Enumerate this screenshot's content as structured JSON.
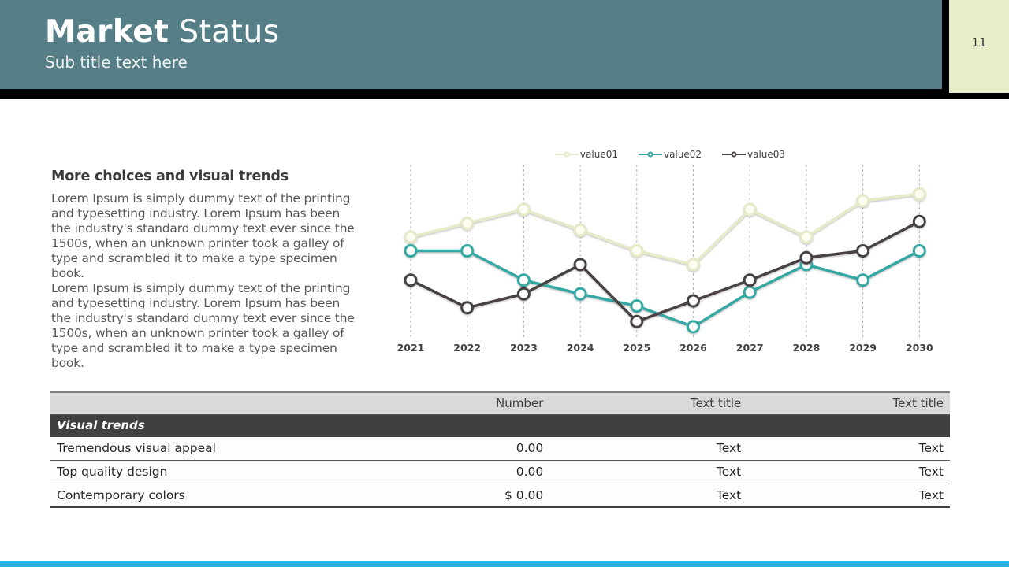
{
  "header": {
    "title_bold": "Market",
    "title_rest": " Status",
    "subtitle": "Sub title text here",
    "page_number": "11"
  },
  "content": {
    "heading": "More choices and visual trends",
    "paragraph1": "Lorem Ipsum is simply dummy text of the printing and typesetting industry. Lorem Ipsum has been the industry's standard dummy text ever since the 1500s, when an unknown printer took a galley of type and scrambled it to make a type specimen book.",
    "paragraph2": "Lorem Ipsum is simply dummy text of the printing and typesetting industry. Lorem Ipsum has been the industry's standard dummy text ever since the 1500s, when an unknown printer took a galley of type and scrambled it to make a type specimen book."
  },
  "chart_data": {
    "type": "line",
    "x": [
      "2021",
      "2022",
      "2023",
      "2024",
      "2025",
      "2026",
      "2027",
      "2028",
      "2029",
      "2030"
    ],
    "series": [
      {
        "name": "value01",
        "color": "#e7e9c8",
        "marker_fill": "#fdfdf2",
        "values": [
          5.8,
          6.6,
          7.4,
          6.2,
          5.0,
          4.2,
          7.4,
          5.8,
          7.9,
          8.3
        ]
      },
      {
        "name": "value02",
        "color": "#35a8a3",
        "marker_fill": "#ffffff",
        "values": [
          5.0,
          5.0,
          3.3,
          2.5,
          1.8,
          0.6,
          2.6,
          4.2,
          3.3,
          5.0
        ]
      },
      {
        "name": "value03",
        "color": "#4a4245",
        "marker_fill": "#ffffff",
        "values": [
          3.3,
          1.7,
          2.5,
          4.2,
          0.9,
          2.1,
          3.3,
          4.6,
          5.0,
          6.7
        ]
      }
    ],
    "title": "",
    "xlabel": "",
    "ylabel": "",
    "ylim": [
      0,
      10
    ],
    "grid": "vertical-dashed",
    "legend_position": "top"
  },
  "table": {
    "headers": [
      "",
      "Number",
      "Text title",
      "Text title"
    ],
    "section": "Visual trends",
    "rows": [
      [
        "Tremendous visual appeal",
        "0.00",
        "Text",
        "Text"
      ],
      [
        "Top quality design",
        "0.00",
        "Text",
        "Text"
      ],
      [
        "Contemporary colors",
        "$ 0.00",
        "Text",
        "Text"
      ]
    ]
  },
  "colors": {
    "header_teal": "#567e87",
    "page_box_green": "#e5edc9",
    "footer_blue": "#29b2e8",
    "table_header_bg": "#d9d9d9",
    "table_section_bg": "#404040",
    "gridline": "#b3b3b3"
  }
}
